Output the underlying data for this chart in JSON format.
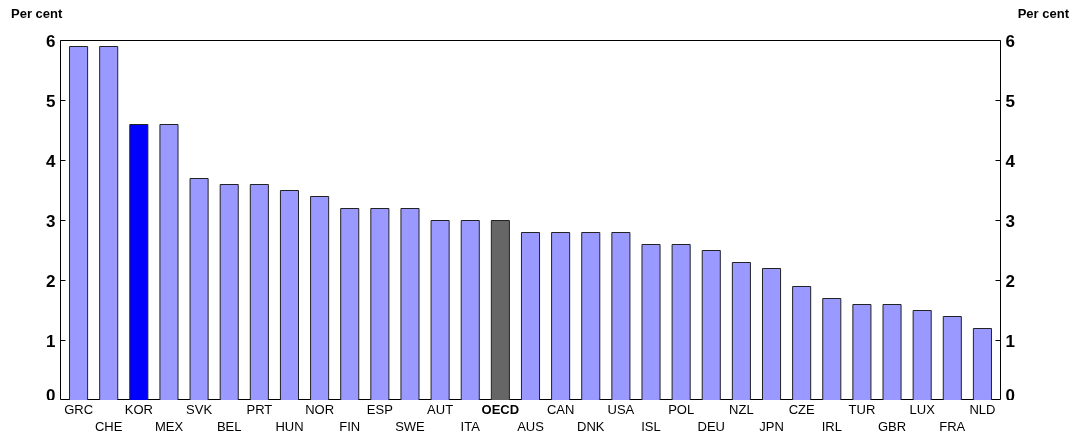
{
  "chart_data": {
    "type": "bar",
    "ylabel": "Per cent",
    "y2label": "Per cent",
    "categories": [
      "GRC",
      "CHE",
      "KOR",
      "MEX",
      "SVK",
      "BEL",
      "PRT",
      "HUN",
      "NOR",
      "FIN",
      "ESP",
      "SWE",
      "AUT",
      "ITA",
      "OECD",
      "AUS",
      "CAN",
      "DNK",
      "USA",
      "ISL",
      "POL",
      "DEU",
      "NZL",
      "JPN",
      "CZE",
      "IRL",
      "TUR",
      "GBR",
      "LUX",
      "FRA",
      "NLD"
    ],
    "values": [
      5.9,
      5.9,
      4.6,
      4.6,
      3.7,
      3.6,
      3.6,
      3.5,
      3.4,
      3.2,
      3.2,
      3.2,
      3.0,
      3.0,
      3.0,
      2.8,
      2.8,
      2.8,
      2.8,
      2.6,
      2.6,
      2.5,
      2.3,
      2.2,
      1.9,
      1.7,
      1.6,
      1.6,
      1.5,
      1.4,
      1.2
    ],
    "colors": [
      "#9999ff",
      "#9999ff",
      "#0000ff",
      "#9999ff",
      "#9999ff",
      "#9999ff",
      "#9999ff",
      "#9999ff",
      "#9999ff",
      "#9999ff",
      "#9999ff",
      "#9999ff",
      "#9999ff",
      "#9999ff",
      "#666666",
      "#9999ff",
      "#9999ff",
      "#9999ff",
      "#9999ff",
      "#9999ff",
      "#9999ff",
      "#9999ff",
      "#9999ff",
      "#9999ff",
      "#9999ff",
      "#9999ff",
      "#9999ff",
      "#9999ff",
      "#9999ff",
      "#9999ff",
      "#9999ff"
    ],
    "ylim": [
      0,
      6
    ],
    "yticks": [
      0,
      1,
      2,
      3,
      4,
      5,
      6
    ],
    "y2lim": [
      0,
      6
    ],
    "y2ticks": [
      0,
      1,
      2,
      3,
      4,
      5,
      6
    ],
    "grid": false
  }
}
